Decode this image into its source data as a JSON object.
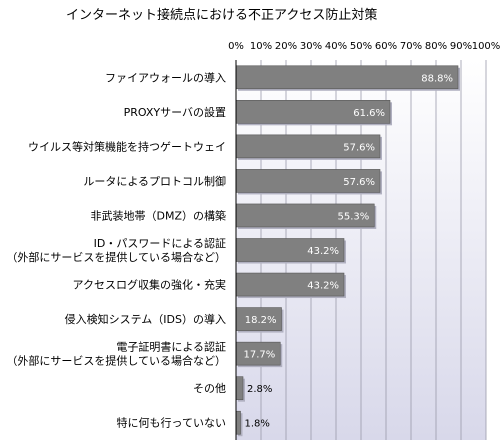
{
  "chart_data": {
    "type": "bar",
    "orientation": "horizontal",
    "title": "インターネット接続点における不正アクセス防止対策",
    "xlim": [
      0,
      100
    ],
    "x_ticks": [
      "0%",
      "10%",
      "20%",
      "30%",
      "40%",
      "50%",
      "60%",
      "70%",
      "80%",
      "90%",
      "100%"
    ],
    "x_tick_values": [
      0,
      10,
      20,
      30,
      40,
      50,
      60,
      70,
      80,
      90,
      100
    ],
    "grid": true,
    "categories": [
      [
        "ファイアウォールの導入"
      ],
      [
        "PROXYサーバの設置"
      ],
      [
        "ウイルス等対策機能を持つゲートウェイ"
      ],
      [
        "ルータによるプロトコル制御"
      ],
      [
        "非武装地帯（DMZ）の構築"
      ],
      [
        "ID・パスワードによる認証",
        "（外部にサービスを提供している場合など）"
      ],
      [
        "アクセスログ収集の強化・充実"
      ],
      [
        "侵入検知システム（IDS）の導入"
      ],
      [
        "電子証明書による認証",
        "（外部にサービスを提供している場合など）"
      ],
      [
        "その他"
      ],
      [
        "特に何も行っていない"
      ]
    ],
    "values": [
      88.8,
      61.6,
      57.6,
      57.6,
      55.3,
      43.2,
      43.2,
      18.2,
      17.7,
      2.8,
      1.8
    ],
    "value_labels": [
      "88.8%",
      "61.6%",
      "57.6%",
      "57.6%",
      "55.3%",
      "43.2%",
      "43.2%",
      "18.2%",
      "17.7%",
      "2.8%",
      "1.8%"
    ],
    "bar_color": "#808080",
    "plot_background_top": "#ffffff",
    "plot_background_bottom": "#d8d8ea"
  }
}
